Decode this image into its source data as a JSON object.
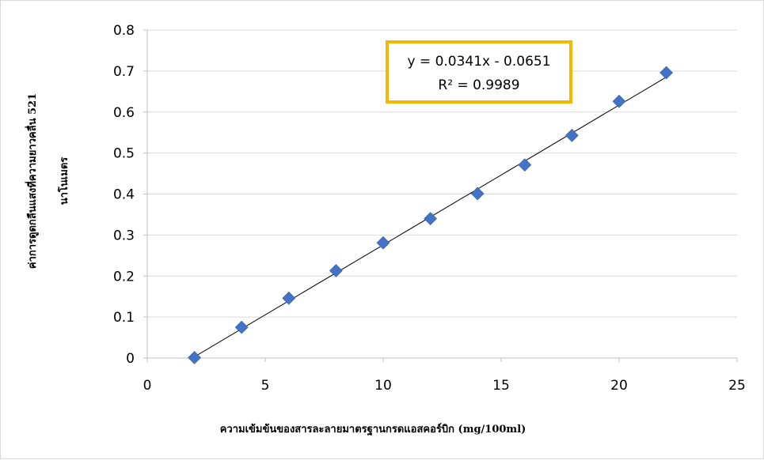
{
  "chart_data": {
    "type": "scatter",
    "title": "",
    "xlabel": "ความเข้มข้นของสารละลายมาตรฐานกรดแอสคอร์บิก (mg/100ml)",
    "ylabel_lines": [
      "ค่าการดูดกลืนแสงที่ความยาวคลื่น 521",
      "นาโนเมตร"
    ],
    "xlim": [
      0,
      25
    ],
    "ylim": [
      0,
      0.8
    ],
    "xticks": [
      0,
      5,
      10,
      15,
      20,
      25
    ],
    "yticks": [
      0,
      0.1,
      0.2,
      0.3,
      0.4,
      0.5,
      0.6,
      0.7,
      0.8
    ],
    "grid": "horizontal",
    "legend": "none",
    "series": [
      {
        "marker": "diamond",
        "color": "#4472C4",
        "x": [
          2,
          4,
          6,
          8,
          10,
          12,
          14,
          16,
          18,
          20,
          22
        ],
        "y": [
          0.001,
          0.075,
          0.146,
          0.213,
          0.281,
          0.34,
          0.401,
          0.471,
          0.543,
          0.626,
          0.696
        ]
      }
    ],
    "trendline": {
      "type": "linear",
      "slope": 0.0341,
      "intercept": -0.0651,
      "x_range": [
        2,
        22
      ],
      "color": "#000000",
      "equation_text": "y = 0.0341x - 0.0651",
      "r2_text": "R² = 0.9989",
      "box_border_color": "#F5B800"
    }
  }
}
